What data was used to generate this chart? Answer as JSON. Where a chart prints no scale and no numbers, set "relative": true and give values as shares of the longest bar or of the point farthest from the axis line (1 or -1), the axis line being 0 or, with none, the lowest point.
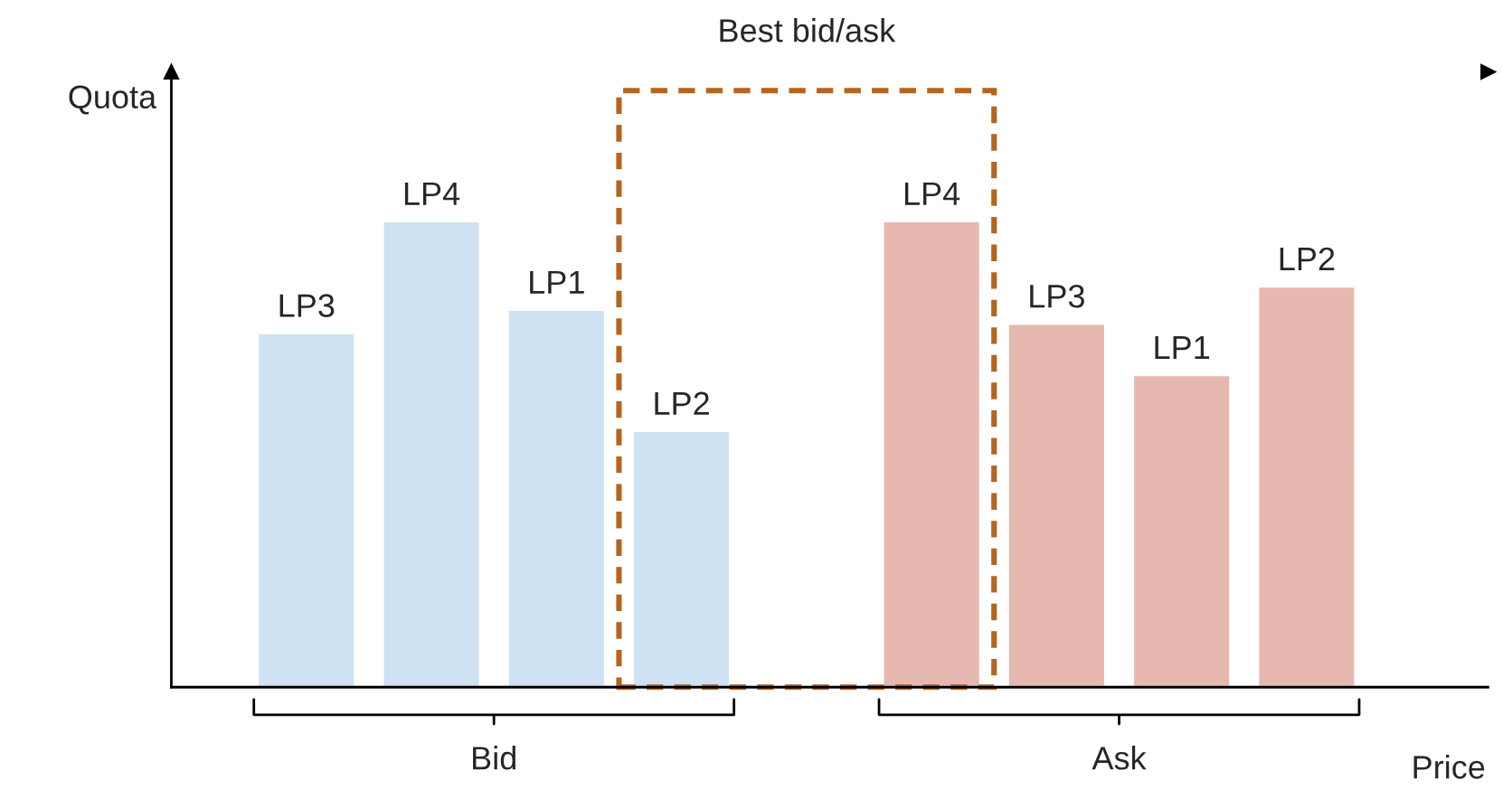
{
  "chart_data": {
    "type": "bar",
    "relative": true,
    "xlabel": "Price",
    "ylabel": "Quota",
    "categories": [
      "LP3",
      "LP4",
      "LP1",
      "LP2",
      null,
      "LP4",
      "LP3",
      "LP1",
      "LP2"
    ],
    "series": [
      {
        "name": "Bid",
        "color": "#cfe2f3",
        "values": [
          0.76,
          1,
          0.81,
          0.55,
          null,
          null,
          null,
          null,
          null
        ]
      },
      {
        "name": "Ask",
        "color": "#e6b8af",
        "values": [
          null,
          null,
          null,
          null,
          null,
          1,
          0.78,
          0.67,
          0.86
        ]
      }
    ],
    "annotations": [
      "Best bid/ask"
    ],
    "legend": false
  }
}
